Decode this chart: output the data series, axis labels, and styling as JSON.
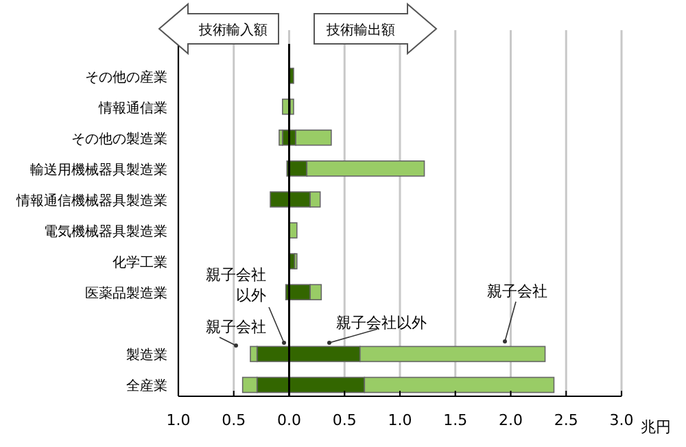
{
  "chart_data": {
    "type": "bar",
    "orientation": "horizontal",
    "stacked": true,
    "categories": [
      "その他の産業",
      "情報通信業",
      "その他の製造業",
      "輸送用機械器具製造業",
      "情報通信機械器具製造業",
      "電気機械器具製造業",
      "化学工業",
      "医薬品製造業",
      null,
      "製造業",
      "全産業"
    ],
    "series": [
      {
        "color": "#336600",
        "values": [
          null,
          0,
          -0.06,
          -0.02,
          -0.17,
          null,
          null,
          -0.03,
          null,
          -0.29,
          -0.29
        ]
      },
      {
        "color": "#99cc66",
        "values": [
          0,
          -0.06,
          -0.03,
          0,
          0,
          0,
          0,
          0,
          null,
          -0.06,
          -0.13
        ]
      },
      {
        "color": "#336600",
        "values": [
          0.04,
          0.01,
          0.06,
          0.16,
          0.19,
          null,
          0.05,
          0.19,
          null,
          0.64,
          0.68
        ]
      },
      {
        "color": "#99cc66",
        "values": [
          0,
          0.03,
          0.32,
          1.06,
          0.09,
          0.07,
          0.02,
          0.1,
          null,
          1.67,
          1.71
        ]
      }
    ],
    "xlim": [
      -1,
      3
    ],
    "xticks": [
      {
        "value": -1,
        "label": "1.0"
      },
      {
        "value": -0.5,
        "label": "0.5"
      },
      {
        "value": 0,
        "label": "0.0"
      },
      0.5,
      {
        "value": 1,
        "label": "1.0"
      },
      1.5,
      {
        "value": 2,
        "label": "2.0"
      },
      2.5,
      {
        "value": 3,
        "label": "3.0"
      }
    ],
    "xlabel": "兆円",
    "grid": "x",
    "ref_lines": [
      {
        "axis": "x",
        "value": 0
      }
    ],
    "annotations": [
      "技術輸入額",
      "技術輸出額",
      "親子会社",
      "親子会社以外",
      "親子会社以外",
      "親子会社"
    ]
  }
}
